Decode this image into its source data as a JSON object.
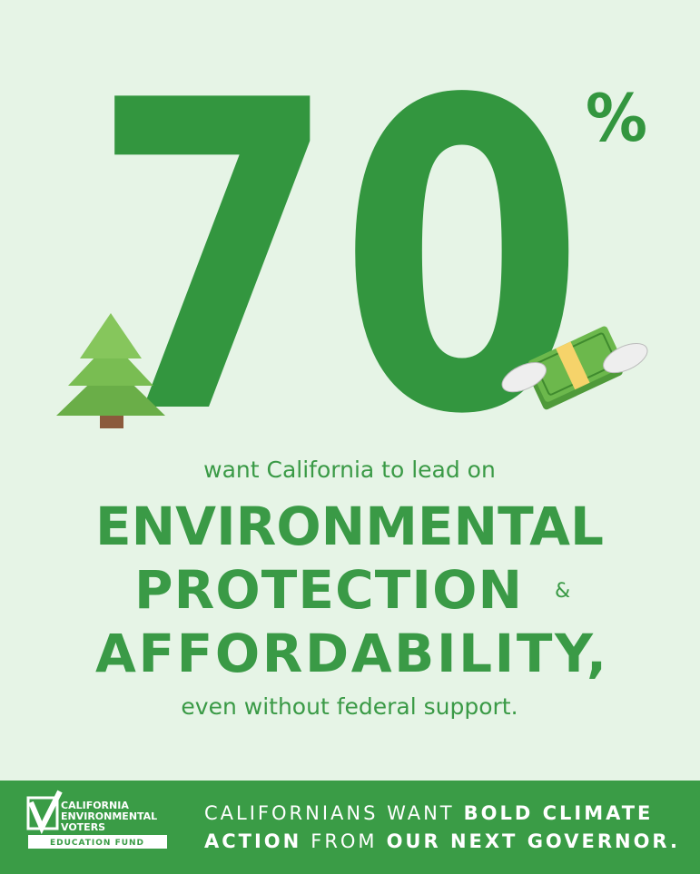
{
  "headline": {
    "number": "70",
    "unit": "%"
  },
  "body": {
    "intro": "want California to lead on",
    "lines": [
      "ENVIRONMENTAL",
      "PROTECTION",
      "AFFORDABILITY,"
    ],
    "ampersand": "&",
    "outro": "even without federal support."
  },
  "footer": {
    "logo": {
      "lines": [
        "CALIFORNIA",
        "ENVIRONMENTAL",
        "VOTERS"
      ],
      "badge": "EDUCATION FUND"
    },
    "tagline": [
      [
        {
          "text": "CALIFORNIANS WANT",
          "bold": false
        },
        {
          "text": "BOLD CLIMATE",
          "bold": true
        }
      ],
      [
        {
          "text": "ACTION",
          "bold": true
        },
        {
          "text": "FROM",
          "bold": false
        },
        {
          "text": "OUR NEXT GOVERNOR.",
          "bold": true
        }
      ]
    ]
  }
}
